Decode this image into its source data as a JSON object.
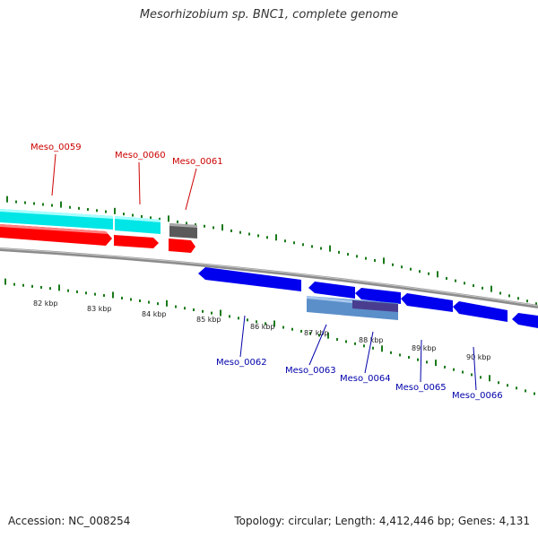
{
  "title": "Mesorhizobium sp. BNC1, complete genome",
  "accession": "Accession: NC_008254",
  "topology": "Topology: circular; Length: 4,412,446 bp; Genes: 4,131",
  "kbp_labels": [
    "82 kbp",
    "83 kbp",
    "84 kbp",
    "85 kbp",
    "86 kbp",
    "87 kbp",
    "88 kbp",
    "89 kbp",
    "90 kbp"
  ],
  "genes": {
    "forward": [
      {
        "name": "Meso_0059",
        "color": "#cc0000"
      },
      {
        "name": "Meso_0060",
        "color": "#cc0000"
      },
      {
        "name": "Meso_0061",
        "color": "#cc0000"
      }
    ],
    "reverse": [
      {
        "name": "Meso_0062",
        "color": "#0000aa"
      },
      {
        "name": "Meso_0063",
        "color": "#0000aa"
      },
      {
        "name": "Meso_0064",
        "color": "#0000aa"
      },
      {
        "name": "Meso_0065",
        "color": "#0000aa"
      },
      {
        "name": "Meso_0066",
        "color": "#0000aa"
      }
    ]
  },
  "colors": {
    "forward_gene": "#ff0000",
    "reverse_gene": "#0000ff",
    "cds_forward": "#00ffff",
    "cds_reverse": "#5f8fc7",
    "pseudo": "#606060",
    "tick": "#1a7a1a",
    "backbone": "#8c8c8c"
  }
}
